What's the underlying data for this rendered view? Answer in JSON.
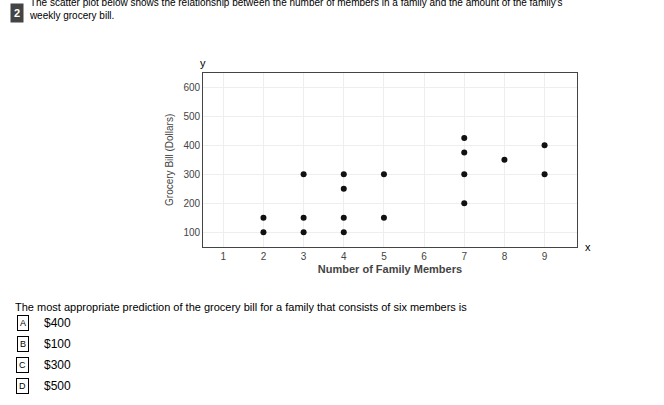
{
  "chart_data": {
    "type": "scatter",
    "title": "The scatter plot below shows the relationship between the number of members in a family and the amount of the family's",
    "subtitle": "weekly grocery bill.",
    "xlabel": "Number of Family Members",
    "ylabel": "Grocery Bill (Dollars)",
    "x": [
      2,
      2,
      3,
      3,
      3,
      4,
      4,
      4,
      4,
      5,
      5,
      7,
      7,
      7,
      7,
      8,
      9,
      9
    ],
    "values": [
      100,
      150,
      100,
      150,
      300,
      100,
      150,
      250,
      300,
      150,
      300,
      200,
      300,
      375,
      425,
      350,
      300,
      400
    ],
    "color": "#111111",
    "xlim": [
      0.5,
      9.8
    ],
    "ylim": [
      50,
      650
    ],
    "xticks": [
      1,
      2,
      3,
      4,
      5,
      6,
      7,
      8,
      9
    ],
    "yticks": [
      100,
      200,
      300,
      400,
      500,
      600
    ],
    "grid": true,
    "annotations": [
      "2",
      "x",
      "y",
      "The most appropriate prediction of the grocery bill for a family that consists of six members is",
      "A",
      "$400",
      "B",
      "$100",
      "C",
      "$300",
      "D",
      "$500"
    ]
  }
}
